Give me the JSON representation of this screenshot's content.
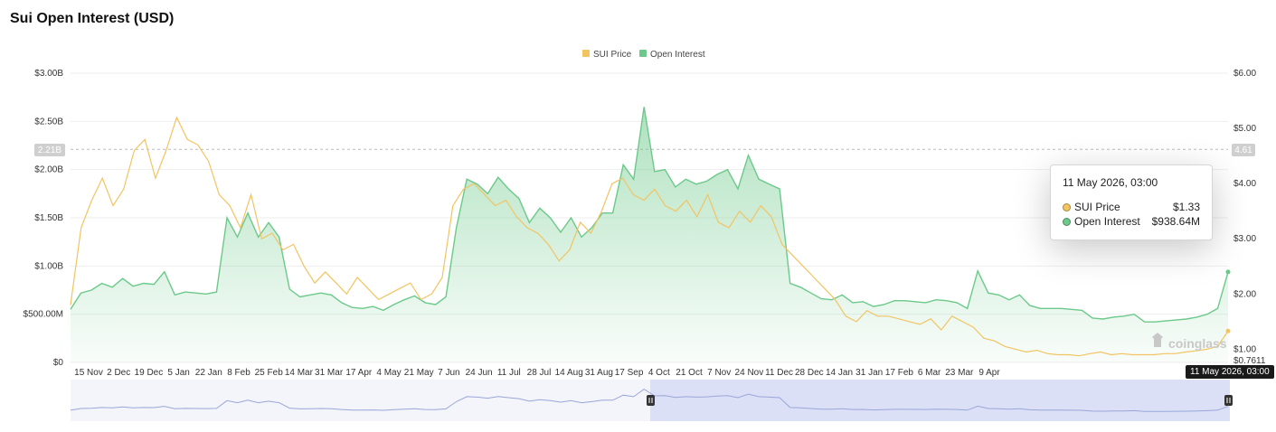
{
  "header": {
    "title": "Sui Open Interest (USD)"
  },
  "chart_data": {
    "type": "line",
    "title": "Sui Open Interest (USD)",
    "legend": {
      "placement": "top-center",
      "entries": [
        "SUI Price",
        "Open Interest"
      ]
    },
    "x_tick_labels": [
      "15 Nov",
      "2 Dec",
      "19 Dec",
      "5 Jan",
      "22 Jan",
      "8 Feb",
      "25 Feb",
      "14 Mar",
      "31 Mar",
      "17 Apr",
      "4 May",
      "21 May",
      "7 Jun",
      "24 Jun",
      "11 Jul",
      "28 Jul",
      "14 Aug",
      "31 Aug",
      "17 Sep",
      "4 Oct",
      "21 Oct",
      "7 Nov",
      "24 Nov",
      "11 Dec",
      "28 Dec",
      "14 Jan",
      "31 Jan",
      "17 Feb",
      "6 Mar",
      "23 Mar",
      "9 Apr"
    ],
    "y_left_tick_labels": [
      "$0",
      "$500.00M",
      "$1.00B",
      "$1.50B",
      "$2.00B",
      "$2.50B",
      "$3.00B"
    ],
    "y_right_tick_labels": [
      "$1.00",
      "$2.00",
      "$3.00",
      "$4.00",
      "$5.00",
      "$6.00"
    ],
    "y_left_ylim": [
      0,
      3000000000
    ],
    "y_right_ylim": [
      0.7611,
      6.0
    ],
    "right_min_label": "$0.7611",
    "crosshair": {
      "left_label": "2.21B",
      "right_label": "4.61",
      "left_value": 2210000000
    },
    "grid": true,
    "series": [
      {
        "name": "Open Interest",
        "color": "#6cc98a",
        "axis": "left",
        "values": [
          550,
          720,
          750,
          820,
          780,
          870,
          790,
          820,
          810,
          940,
          700,
          730,
          720,
          710,
          730,
          1500,
          1300,
          1550,
          1300,
          1450,
          1300,
          760,
          680,
          700,
          720,
          700,
          620,
          570,
          560,
          580,
          540,
          600,
          650,
          690,
          620,
          600,
          680,
          1400,
          1900,
          1850,
          1750,
          1920,
          1800,
          1700,
          1450,
          1600,
          1500,
          1350,
          1500,
          1300,
          1400,
          1550,
          1550,
          2050,
          1900,
          2650,
          1980,
          2000,
          1820,
          1900,
          1850,
          1880,
          1950,
          2000,
          1800,
          2150,
          1900,
          1850,
          1800,
          820,
          780,
          720,
          660,
          650,
          700,
          620,
          630,
          580,
          600,
          640,
          640,
          630,
          620,
          650,
          640,
          620,
          560,
          950,
          720,
          700,
          650,
          700,
          590,
          560,
          560,
          560,
          550,
          540,
          460,
          450,
          470,
          480,
          500,
          420,
          420,
          430,
          440,
          450,
          470,
          500,
          560,
          938.64
        ]
      },
      {
        "name": "SUI Price",
        "color": "#f2c462",
        "axis": "right",
        "values": [
          1.8,
          3.2,
          3.7,
          4.1,
          3.6,
          3.9,
          4.6,
          4.8,
          4.1,
          4.6,
          5.2,
          4.8,
          4.7,
          4.4,
          3.8,
          3.6,
          3.2,
          3.8,
          3.0,
          3.1,
          2.8,
          2.9,
          2.5,
          2.2,
          2.4,
          2.2,
          2.0,
          2.3,
          2.1,
          1.9,
          2.0,
          2.1,
          2.2,
          1.9,
          2.0,
          2.3,
          3.6,
          3.9,
          4.0,
          3.8,
          3.6,
          3.7,
          3.4,
          3.2,
          3.1,
          2.9,
          2.6,
          2.8,
          3.3,
          3.1,
          3.5,
          4.0,
          4.1,
          3.8,
          3.7,
          3.9,
          3.6,
          3.5,
          3.7,
          3.4,
          3.8,
          3.3,
          3.2,
          3.5,
          3.3,
          3.6,
          3.4,
          2.9,
          2.7,
          2.5,
          2.3,
          2.1,
          1.9,
          1.6,
          1.5,
          1.7,
          1.6,
          1.6,
          1.55,
          1.5,
          1.45,
          1.55,
          1.35,
          1.6,
          1.5,
          1.4,
          1.2,
          1.15,
          1.05,
          1.0,
          0.95,
          0.98,
          0.92,
          0.9,
          0.9,
          0.88,
          0.92,
          0.95,
          0.9,
          0.92,
          0.9,
          0.9,
          0.9,
          0.92,
          0.92,
          0.95,
          0.97,
          1.0,
          1.05,
          1.33
        ]
      }
    ],
    "tooltip": {
      "date": "11 May 2026, 03:00",
      "rows": [
        {
          "name": "SUI Price",
          "value": "$1.33",
          "color": "#f2c462"
        },
        {
          "name": "Open Interest",
          "value": "$938.64M",
          "color": "#6cc98a"
        }
      ]
    },
    "timestamp_badge": "11 May 2026, 03:00",
    "watermark": "coinglass",
    "navigator": {
      "selected_start": 0.5,
      "selected_end": 1.0
    }
  }
}
